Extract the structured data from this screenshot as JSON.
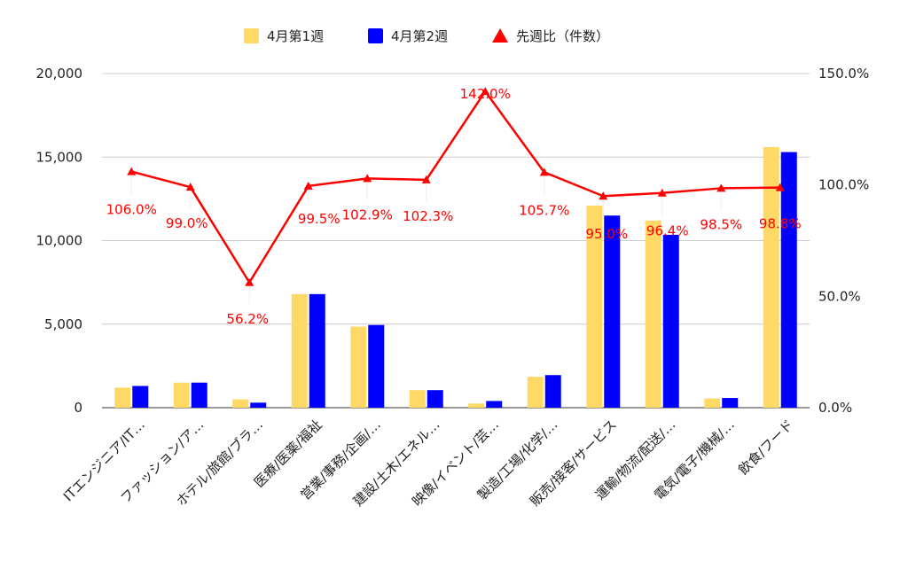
{
  "chart_data": {
    "type": "bar",
    "categories": [
      "ITエンジニア/IT…",
      "ファッション/ア…",
      "ホテル/旅館/ブラ…",
      "医療/医薬/福祉",
      "営業/事務/企画/…",
      "建設/土木/エネル…",
      "映像/イベント/芸…",
      "製造/工場/化学/…",
      "販売/接客/サービス",
      "運輸/物流/配送/…",
      "電気/電子/機械/…",
      "飲食/フード"
    ],
    "series": [
      {
        "name": "4月第1週",
        "type": "bar",
        "color": "#ffd966",
        "axis": "left",
        "values": [
          1200,
          1500,
          500,
          6800,
          4850,
          1050,
          250,
          1850,
          12100,
          11200,
          550,
          15600
        ]
      },
      {
        "name": "4月第2週",
        "type": "bar",
        "color": "#0000ff",
        "axis": "right-excluded",
        "values": [
          1300,
          1500,
          300,
          6800,
          4950,
          1050,
          400,
          1950,
          11500,
          10350,
          580,
          15300
        ]
      },
      {
        "name": "先週比（件数）",
        "type": "line",
        "color": "#ff0000",
        "axis": "right",
        "values": [
          106.0,
          99.0,
          56.2,
          99.5,
          102.9,
          102.3,
          142.0,
          105.7,
          95.0,
          96.4,
          98.5,
          98.8
        ],
        "labels": [
          "106.0%",
          "99.0%",
          "56.2%",
          "99.5%",
          "102.9%",
          "102.3%",
          "142.0%",
          "105.7%",
          "95.0%",
          "96.4%",
          "98.5%",
          "98.8%"
        ]
      }
    ],
    "yaxis_left": {
      "ylim": [
        0,
        20000
      ],
      "ticks": [
        0,
        5000,
        10000,
        15000,
        20000
      ],
      "tick_labels": [
        "0",
        "5,000",
        "10,000",
        "15,000",
        "20,000"
      ]
    },
    "yaxis_right": {
      "ylim": [
        0,
        150
      ],
      "ticks": [
        0,
        50,
        100,
        150
      ],
      "tick_labels": [
        "0.0%",
        "50.0%",
        "100.0%",
        "150.0%"
      ]
    },
    "grid": true,
    "legend": "top-center",
    "title": "",
    "xlabel": "",
    "ylabel": ""
  }
}
